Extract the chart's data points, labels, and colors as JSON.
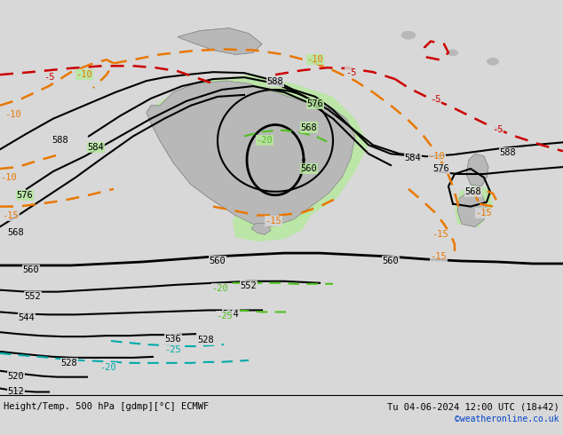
{
  "title_left": "Height/Temp. 500 hPa [gdmp][°C] ECMWF",
  "title_right": "Tu 04-06-2024 12:00 UTC (18+42)",
  "credit": "©weatheronline.co.uk",
  "bg_color": "#d8d8d8",
  "land_color": "#b8b8b8",
  "green_fill_color": "#b8e8a0",
  "fig_width": 6.34,
  "fig_height": 4.9,
  "dpi": 100
}
